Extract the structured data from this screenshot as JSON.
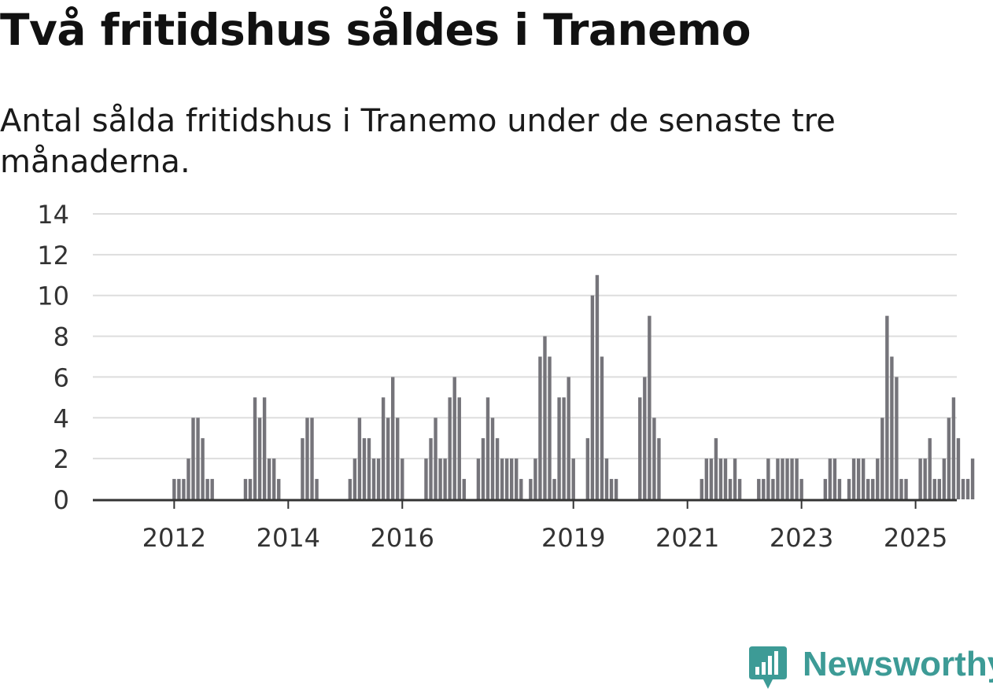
{
  "title": "Två fritidshus såldes i Tranemo",
  "subtitle": "Antal sålda fritidshus i Tranemo under de senaste tre månaderna.",
  "brand": {
    "name": "Newsworthy",
    "color": "#3d9b96"
  },
  "colors": {
    "bar": "#75747a",
    "highlight": "#1aa39a",
    "grid": "#dddddd",
    "axis": "#333333",
    "text": "#333333"
  },
  "chart_data": {
    "type": "bar",
    "title": "Två fritidshus såldes i Tranemo",
    "xlabel": "",
    "ylabel": "",
    "ylim": [
      0,
      14
    ],
    "yticks": [
      "0",
      "2",
      "4",
      "6",
      "8",
      "10",
      "12",
      "14"
    ],
    "xticks": [
      {
        "label": "2012",
        "index": 9
      },
      {
        "label": "2014",
        "index": 33
      },
      {
        "label": "2016",
        "index": 57
      },
      {
        "label": "2019",
        "index": 93
      },
      {
        "label": "2021",
        "index": 117
      },
      {
        "label": "2023",
        "index": 141
      },
      {
        "label": "2025",
        "index": 165
      }
    ],
    "values": [
      0,
      0,
      0,
      0,
      0,
      0,
      0,
      0,
      0,
      1,
      1,
      1,
      2,
      4,
      4,
      3,
      1,
      1,
      0,
      0,
      0,
      0,
      0,
      0,
      1,
      1,
      5,
      4,
      5,
      2,
      2,
      1,
      0,
      0,
      0,
      0,
      3,
      4,
      4,
      1,
      0,
      0,
      0,
      0,
      0,
      0,
      1,
      2,
      4,
      3,
      3,
      2,
      2,
      5,
      4,
      6,
      4,
      2,
      0,
      0,
      0,
      0,
      2,
      3,
      4,
      2,
      2,
      5,
      6,
      5,
      1,
      0,
      0,
      2,
      3,
      5,
      4,
      3,
      2,
      2,
      2,
      2,
      1,
      0,
      1,
      2,
      7,
      8,
      7,
      1,
      5,
      5,
      6,
      2,
      0,
      0,
      3,
      10,
      11,
      7,
      2,
      1,
      1,
      0,
      0,
      0,
      0,
      5,
      6,
      9,
      4,
      3,
      0,
      0,
      0,
      0,
      0,
      0,
      0,
      0,
      1,
      2,
      2,
      3,
      2,
      2,
      1,
      2,
      1,
      0,
      0,
      0,
      1,
      1,
      2,
      1,
      2,
      2,
      2,
      2,
      2,
      1,
      0,
      0,
      0,
      0,
      1,
      2,
      2,
      1,
      0,
      1,
      2,
      2,
      2,
      1,
      1,
      2,
      4,
      9,
      7,
      6,
      1,
      1,
      0,
      0,
      2,
      2,
      3,
      1,
      1,
      2,
      4,
      5,
      3,
      1,
      1,
      2
    ],
    "highlight_index": 179,
    "highlight_label": "2"
  }
}
